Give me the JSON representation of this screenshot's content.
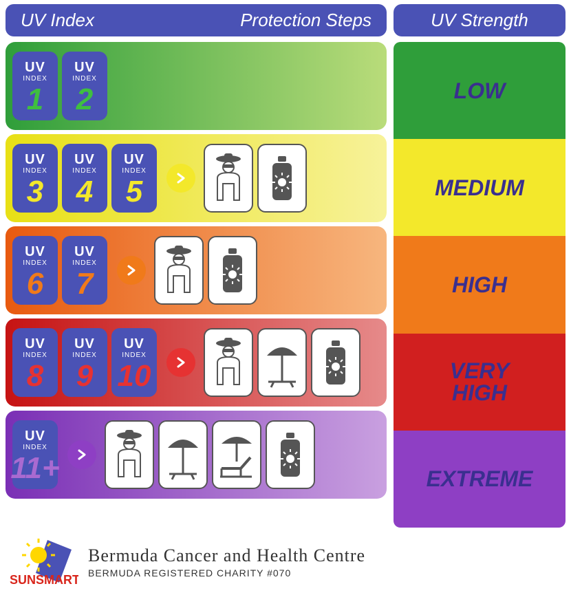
{
  "header": {
    "uv_index": "UV Index",
    "protection_steps": "Protection Steps",
    "uv_strength": "UV Strength",
    "bg_color": "#4a52b5",
    "text_color": "#ffffff"
  },
  "rows": [
    {
      "band_gradient_from": "#2f9e3a",
      "band_gradient_to": "#b9dc7a",
      "badges": [
        {
          "label_top": "UV",
          "label_sub": "INDEX",
          "value": "1",
          "value_color": "#3fbf3f"
        },
        {
          "label_top": "UV",
          "label_sub": "INDEX",
          "value": "2",
          "value_color": "#3fbf3f"
        }
      ],
      "arrow": null,
      "icons": [],
      "strength_label": "LOW",
      "strength_bg": "#2f9e3a"
    },
    {
      "band_gradient_from": "#e8e015",
      "band_gradient_to": "#f7f29a",
      "badges": [
        {
          "label_top": "UV",
          "label_sub": "INDEX",
          "value": "3",
          "value_color": "#f3e82b"
        },
        {
          "label_top": "UV",
          "label_sub": "INDEX",
          "value": "4",
          "value_color": "#f3e82b"
        },
        {
          "label_top": "UV",
          "label_sub": "INDEX",
          "value": "5",
          "value_color": "#f3e82b"
        }
      ],
      "arrow": {
        "bg": "#f3e82b",
        "chev": "#ffffff"
      },
      "icons": [
        "person",
        "sunscreen"
      ],
      "strength_label": "MEDIUM",
      "strength_bg": "#f3e82b"
    },
    {
      "band_gradient_from": "#e85a0f",
      "band_gradient_to": "#f7b67e",
      "badges": [
        {
          "label_top": "UV",
          "label_sub": "INDEX",
          "value": "6",
          "value_color": "#f07a1a"
        },
        {
          "label_top": "UV",
          "label_sub": "INDEX",
          "value": "7",
          "value_color": "#f07a1a"
        }
      ],
      "arrow": {
        "bg": "#f07a1a",
        "chev": "#ffffff"
      },
      "icons": [
        "person",
        "sunscreen"
      ],
      "strength_label": "HIGH",
      "strength_bg": "#f07a1a"
    },
    {
      "band_gradient_from": "#c61313",
      "band_gradient_to": "#e68a8a",
      "badges": [
        {
          "label_top": "UV",
          "label_sub": "INDEX",
          "value": "8",
          "value_color": "#e63232"
        },
        {
          "label_top": "UV",
          "label_sub": "INDEX",
          "value": "9",
          "value_color": "#e63232"
        },
        {
          "label_top": "UV",
          "label_sub": "INDEX",
          "value": "10",
          "value_color": "#e63232"
        }
      ],
      "arrow": {
        "bg": "#e63232",
        "chev": "#ffffff"
      },
      "icons": [
        "person",
        "umbrella",
        "sunscreen"
      ],
      "strength_label": "VERY HIGH",
      "strength_bg": "#d11f1f"
    },
    {
      "band_gradient_from": "#7a2fb5",
      "band_gradient_to": "#c9a0e0",
      "badges": [
        {
          "label_top": "UV",
          "label_sub": "INDEX",
          "value": "11+",
          "value_color": "#a96ad1"
        }
      ],
      "arrow": {
        "bg": "#8e3fc4",
        "chev": "#ffffff"
      },
      "icons": [
        "person",
        "umbrella",
        "lounger",
        "sunscreen"
      ],
      "strength_label": "EXTREME",
      "strength_bg": "#8e3fc4"
    }
  ],
  "footer": {
    "logo_text": "SUNSMART",
    "logo_text_color": "#d9261c",
    "org": "Bermuda Cancer and Health Centre",
    "charity": "BERMUDA REGISTERED CHARITY #070"
  },
  "icon_fill": "#555555",
  "badge_bg": "#4a52b5",
  "badge_text": "#ffffff",
  "strength_text_color": "#3a2f8f"
}
